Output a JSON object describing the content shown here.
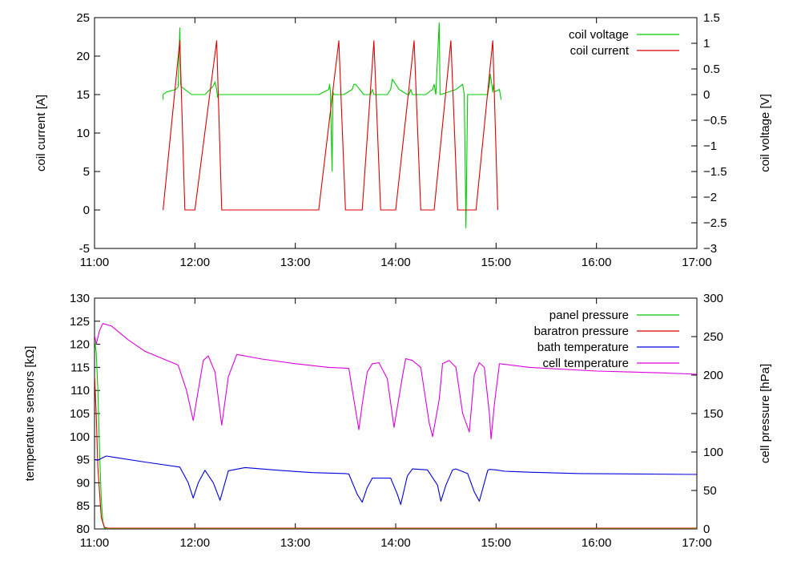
{
  "chart_data": [
    {
      "type": "line",
      "x_ticks": [
        "11:00",
        "12:00",
        "13:00",
        "14:00",
        "15:00",
        "16:00",
        "17:00"
      ],
      "xlim": [
        660,
        1020
      ],
      "ylabel": "coil current [A]",
      "y2label": "coil voltage [V]",
      "ylim": [
        -5,
        25
      ],
      "y2lim": [
        -3,
        1.5
      ],
      "y_ticks": [
        "-5",
        "0",
        "5",
        "10",
        "15",
        "20",
        "25"
      ],
      "y2_ticks": [
        "-3",
        "-2.5",
        "-2",
        "-1.5",
        "-1",
        "-0.5",
        "0",
        "0.5",
        "1",
        "1.5"
      ],
      "legend_position": "top-right",
      "grid": false,
      "series": [
        {
          "name": "coil voltage",
          "axis": "y2",
          "color": "#00cc00",
          "x": [
            701,
            701,
            703,
            708.5,
            710,
            711,
            711.5,
            712,
            718,
            719,
            719.5,
            720,
            726,
            730.5,
            731.5,
            732,
            733,
            733.5,
            734,
            794,
            800,
            800.5,
            801,
            802,
            802.5,
            803,
            808,
            809,
            814,
            815,
            816,
            821,
            822,
            825,
            826,
            827,
            835,
            837,
            838,
            842,
            847,
            848,
            849,
            850,
            858,
            862,
            863,
            864,
            866,
            866.5,
            867,
            876,
            880,
            881,
            882,
            883,
            884,
            895,
            895.5,
            896,
            896.5,
            897,
            898,
            898.5,
            899,
            902,
            903
          ],
          "y": [
            -0.1,
            0,
            0.05,
            0.1,
            0.15,
            1.3,
            0.2,
            0.15,
            0,
            0,
            0,
            0,
            0,
            0.15,
            0.2,
            0.25,
            0.1,
            -0.05,
            0,
            0,
            0.1,
            0.2,
            0.05,
            -1.5,
            0.05,
            0,
            0,
            0,
            0.1,
            0.2,
            0.2,
            0,
            0,
            0,
            0.1,
            0,
            0,
            0.1,
            0.3,
            0.1,
            0,
            0,
            0.1,
            0,
            0,
            0.1,
            0.2,
            0,
            1.4,
            0,
            0,
            0.1,
            0.2,
            0,
            -2.6,
            0,
            0,
            0,
            0.1,
            0.2,
            0.4,
            0.3,
            0.05,
            0.2,
            0.05,
            0.1,
            -0.1
          ]
        },
        {
          "name": "coil current",
          "axis": "y",
          "color": "#dd0000",
          "x": [
            701,
            711,
            714,
            720,
            733,
            736,
            794,
            806,
            810,
            820,
            827,
            831,
            840,
            851,
            855,
            863,
            873,
            877,
            888,
            898,
            901
          ],
          "y": [
            0,
            22,
            0,
            0,
            22,
            0,
            0,
            22,
            0,
            0,
            22,
            0,
            0,
            22,
            0,
            0,
            22,
            0,
            0,
            22,
            0
          ]
        }
      ]
    },
    {
      "type": "line",
      "x_ticks": [
        "11:00",
        "12:00",
        "13:00",
        "14:00",
        "15:00",
        "16:00",
        "17:00"
      ],
      "xlim": [
        660,
        1020
      ],
      "ylabel": "temperature sensors [kΩ]",
      "y2label": "cell pressure [hPa]",
      "ylim": [
        80,
        130
      ],
      "y2lim": [
        0,
        300
      ],
      "y_ticks": [
        "80",
        "85",
        "90",
        "95",
        "100",
        "105",
        "110",
        "115",
        "120",
        "125",
        "130"
      ],
      "y2_ticks": [
        "0",
        "50",
        "100",
        "150",
        "200",
        "250",
        "300"
      ],
      "legend_position": "top-right",
      "grid": false,
      "series": [
        {
          "name": "panel pressure",
          "axis": "y2",
          "color": "#00cc00",
          "x": [
            660,
            661,
            662,
            663,
            664,
            665,
            666,
            668,
            670,
            1020
          ],
          "y": [
            245,
            230,
            180,
            100,
            40,
            8,
            1,
            0,
            0,
            0
          ]
        },
        {
          "name": "baratron pressure",
          "axis": "y2",
          "color": "#dd0000",
          "x": [
            660,
            661,
            662,
            664,
            666,
            668,
            680,
            1020
          ],
          "y": [
            200,
            150,
            80,
            15,
            2,
            1,
            1,
            1
          ]
        },
        {
          "name": "bath temperature",
          "axis": "y",
          "color": "#0000dd",
          "x": [
            660,
            662,
            667,
            672,
            690,
            711,
            716,
            719,
            722,
            726,
            731,
            735,
            740,
            750,
            770,
            790,
            810,
            812,
            817,
            820,
            823,
            826,
            837,
            841,
            843,
            847,
            850,
            859,
            865,
            867,
            870,
            874,
            876,
            883,
            887,
            890,
            893,
            895,
            896,
            900,
            905,
            920,
            950,
            1020
          ],
          "y": [
            95,
            94.9,
            95.8,
            95.5,
            94.5,
            93.4,
            90,
            86.7,
            90,
            92.7,
            90,
            86.2,
            92.6,
            93.3,
            92.7,
            92.2,
            92,
            91.9,
            87.5,
            85.8,
            89,
            91,
            91,
            87.5,
            85.3,
            91.5,
            93,
            92.8,
            89.5,
            86,
            89.5,
            92.8,
            93,
            92,
            88,
            86,
            90,
            92.7,
            92.9,
            92.8,
            92.5,
            92.3,
            92,
            91.8
          ]
        },
        {
          "name": "cell temperature",
          "axis": "y",
          "color": "#dd00dd",
          "x": [
            660,
            661,
            663,
            665,
            670,
            680,
            690,
            700,
            710,
            715,
            719,
            722,
            725,
            728,
            732,
            736,
            740,
            745,
            760,
            780,
            800,
            812,
            815,
            818,
            820,
            823,
            826,
            830,
            835,
            839,
            844,
            846,
            850,
            855,
            860,
            862,
            866,
            868,
            872,
            876,
            880,
            884,
            887,
            890,
            893,
            896,
            897,
            899,
            902,
            920,
            960,
            1000,
            1020
          ],
          "y": [
            122,
            120,
            123,
            124.5,
            124,
            121,
            118.5,
            117,
            115.5,
            110,
            103.5,
            110,
            116.5,
            117.5,
            114,
            102.5,
            113,
            117.8,
            116.8,
            115.8,
            115,
            114.8,
            108,
            101.5,
            107,
            114,
            115.8,
            116,
            112.5,
            102,
            113,
            116.9,
            116.5,
            115,
            103,
            100,
            108,
            115.8,
            116.5,
            115,
            105,
            101,
            113.5,
            116,
            115,
            105,
            99.5,
            107,
            115.8,
            115,
            114.2,
            113.8,
            113.5
          ]
        }
      ]
    }
  ]
}
